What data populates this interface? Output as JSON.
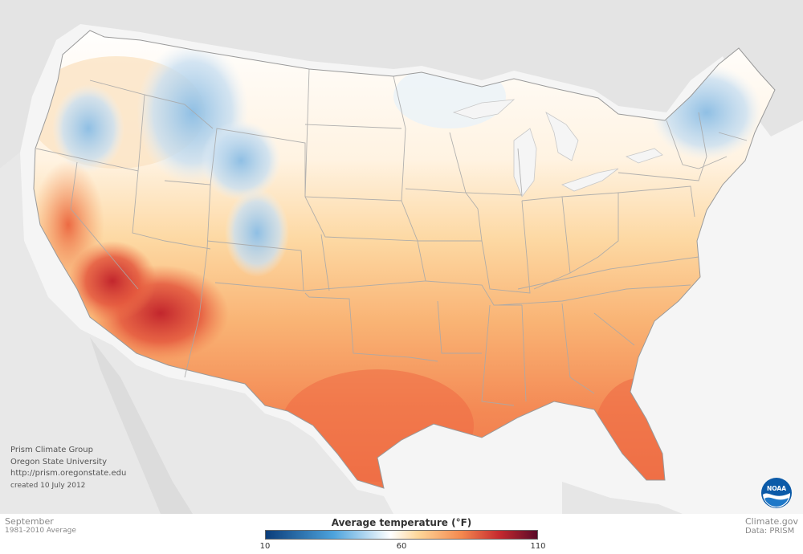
{
  "map": {
    "region": "Contiguous United States",
    "variable": "Average temperature",
    "colors": {
      "cold": "#0b3d7a",
      "cool": "#4da3dc",
      "neutral": "#ffffff",
      "mild": "#fdd79a",
      "warm": "#f4894f",
      "hot": "#c62a2f",
      "extreme": "#5a0a28",
      "land_outside": "#e4e4e4",
      "water": "#f5f5f5"
    }
  },
  "credits": {
    "line1": "Prism Climate Group",
    "line2": "Oregon State University",
    "line3": "http://prism.oregonstate.edu",
    "line4": "created 10 July 2012"
  },
  "footer": {
    "month": "September",
    "period": "1981-2010 Average",
    "site": "Climate.gov",
    "data_source": "Data: PRISM"
  },
  "legend": {
    "title": "Average temperature (°F)",
    "min": 10,
    "mid": 60,
    "max": 110,
    "ticks": [
      "10",
      "60",
      "110"
    ]
  },
  "logo": {
    "text": "NOAA",
    "icon": "noaa-logo-icon"
  }
}
